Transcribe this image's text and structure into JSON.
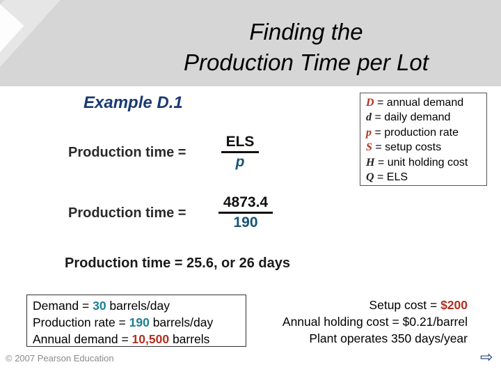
{
  "title_line1": "Finding the",
  "title_line2": "Production Time per Lot",
  "example": "Example D.1",
  "legend": [
    {
      "var": "D",
      "text": "= annual demand"
    },
    {
      "var": "d",
      "text": "= daily demand"
    },
    {
      "var": "p",
      "text": " = production rate"
    },
    {
      "var": "S",
      "text": "= setup costs"
    },
    {
      "var": "H",
      "text": "= unit holding cost"
    },
    {
      "var": "Q",
      "text": "= ELS"
    }
  ],
  "eq1": {
    "label": "Production time =",
    "num": "ELS",
    "den": "p"
  },
  "eq2": {
    "label": "Production time =",
    "num": "4873.4",
    "den": "190"
  },
  "result": "Production time =  25.6, or 26 days",
  "left_box": [
    {
      "pre": "Demand = ",
      "val": "30",
      "post": " barrels/day"
    },
    {
      "pre": "Production rate = ",
      "val": "190",
      "post": " barrels/day"
    },
    {
      "pre": "Annual demand = ",
      "val": "10,500",
      "post": " barrels"
    }
  ],
  "right_box": [
    {
      "pre": "Setup cost = ",
      "val": "$200",
      "post": ""
    },
    {
      "pre": "Annual holding cost = $0.21/barrel",
      "val": "",
      "post": ""
    },
    {
      "pre": "Plant operates 350 days/year",
      "val": "",
      "post": ""
    }
  ],
  "copyright": "© 2007 Pearson Education",
  "arrow_icon": "next-arrow-icon"
}
